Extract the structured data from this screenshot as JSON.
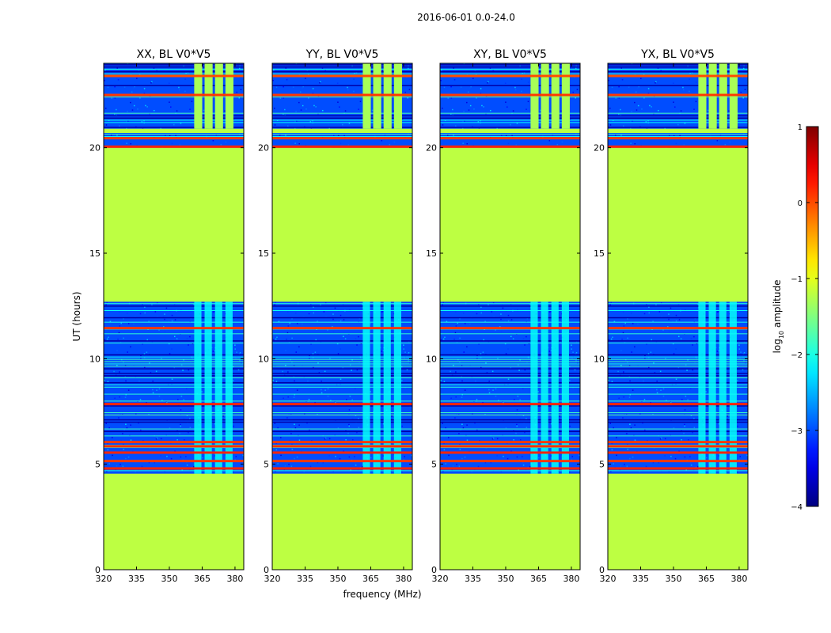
{
  "figure": {
    "suptitle": "2016-06-01 0.0-24.0",
    "xlabel": "frequency (MHz)",
    "ylabel": "UT (hours)"
  },
  "colorbar": {
    "label_prefix": "log",
    "label_sub": "10",
    "label_suffix": " amplitude",
    "range": [
      -4,
      1
    ],
    "ticks": [
      {
        "value": 1,
        "label": "1"
      },
      {
        "value": 0,
        "label": "0"
      },
      {
        "value": -1,
        "label": "−1"
      },
      {
        "value": -2,
        "label": "−2"
      },
      {
        "value": -3,
        "label": "−3"
      },
      {
        "value": -4,
        "label": "−4"
      }
    ],
    "colormap": "jet"
  },
  "chart_data": {
    "type": "heatmap",
    "x_range": [
      320,
      384
    ],
    "y_range": [
      0,
      24
    ],
    "x_ticks": [
      {
        "value": 320,
        "label": "320"
      },
      {
        "value": 335,
        "label": "335"
      },
      {
        "value": 350,
        "label": "350"
      },
      {
        "value": 365,
        "label": "365"
      },
      {
        "value": 380,
        "label": "380"
      }
    ],
    "y_ticks": [
      {
        "value": 0,
        "label": "0"
      },
      {
        "value": 5,
        "label": "5"
      },
      {
        "value": 10,
        "label": "10"
      },
      {
        "value": 15,
        "label": "15"
      },
      {
        "value": 20,
        "label": "20"
      }
    ],
    "panels": [
      {
        "title": "XX, BL V0*V5",
        "rfi_band_mhz": [
          361,
          380
        ]
      },
      {
        "title": "YY, BL V0*V5",
        "rfi_band_mhz": [
          361,
          380
        ]
      },
      {
        "title": "XY, BL V0*V5",
        "rfi_band_mhz": [
          361,
          380
        ]
      },
      {
        "title": "YX, BL V0*V5",
        "rfi_band_mhz": [
          361,
          380
        ]
      }
    ],
    "flagged_value": -1.2,
    "background_value": -3.0,
    "flagged_time_ranges_hours": [
      [
        0,
        4.55
      ],
      [
        12.7,
        20.0
      ],
      [
        20.7,
        20.9
      ]
    ],
    "high_amplitude_lines_hours": [
      {
        "t": 20.05,
        "value": 0.2
      },
      {
        "t": 20.45,
        "value": 0.1
      },
      {
        "t": 22.5,
        "value": 0.1
      },
      {
        "t": 23.4,
        "value": 0.0
      },
      {
        "t": 11.45,
        "value": 0.1
      },
      {
        "t": 7.85,
        "value": 0.2
      },
      {
        "t": 6.05,
        "value": 0.1
      },
      {
        "t": 5.85,
        "value": 0.15
      },
      {
        "t": 5.55,
        "value": 0.2
      },
      {
        "t": 5.15,
        "value": 0.1
      },
      {
        "t": 4.8,
        "value": 0.2
      }
    ]
  }
}
